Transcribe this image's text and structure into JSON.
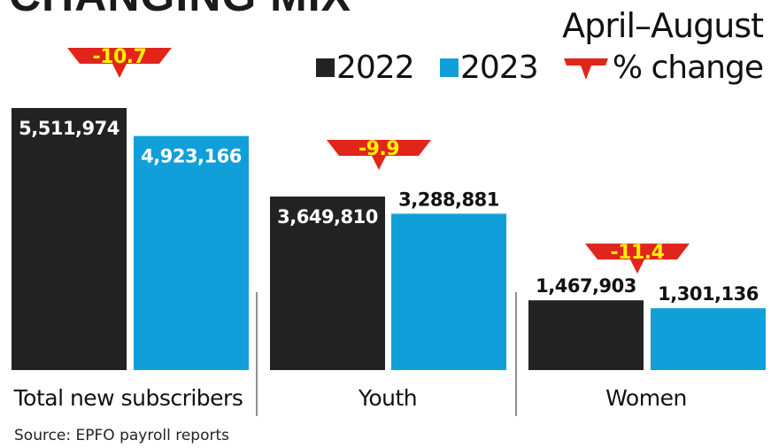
{
  "title": "CHANGING MIX",
  "subtitle": "April–August",
  "source": "Source: EPFO payroll reports",
  "colors": {
    "2022": "#222222",
    "2023": "#119fd9",
    "change": "#e1251b",
    "change_text": "#fff200"
  },
  "chart_data": {
    "type": "bar",
    "title": "CHANGING MIX",
    "subtitle": "April–August",
    "categories": [
      "Total new subscribers",
      "Youth",
      "Women"
    ],
    "series": [
      {
        "name": "2022",
        "values": [
          5511974,
          3649810,
          1467903
        ],
        "labels": [
          "5,511,974",
          "3,649,810",
          "1,467,903"
        ]
      },
      {
        "name": "2023",
        "values": [
          4923166,
          3288881,
          1301136
        ],
        "labels": [
          "4,923,166",
          "3,288,881",
          "1,301,136"
        ]
      }
    ],
    "pct_change": {
      "name": "% change",
      "values": [
        -10.7,
        -9.9,
        -11.4
      ],
      "labels": [
        "-10.7",
        "-9.9",
        "-11.4"
      ]
    },
    "legend": "top-right",
    "grid": false,
    "ylim": [
      0,
      5511974
    ]
  }
}
